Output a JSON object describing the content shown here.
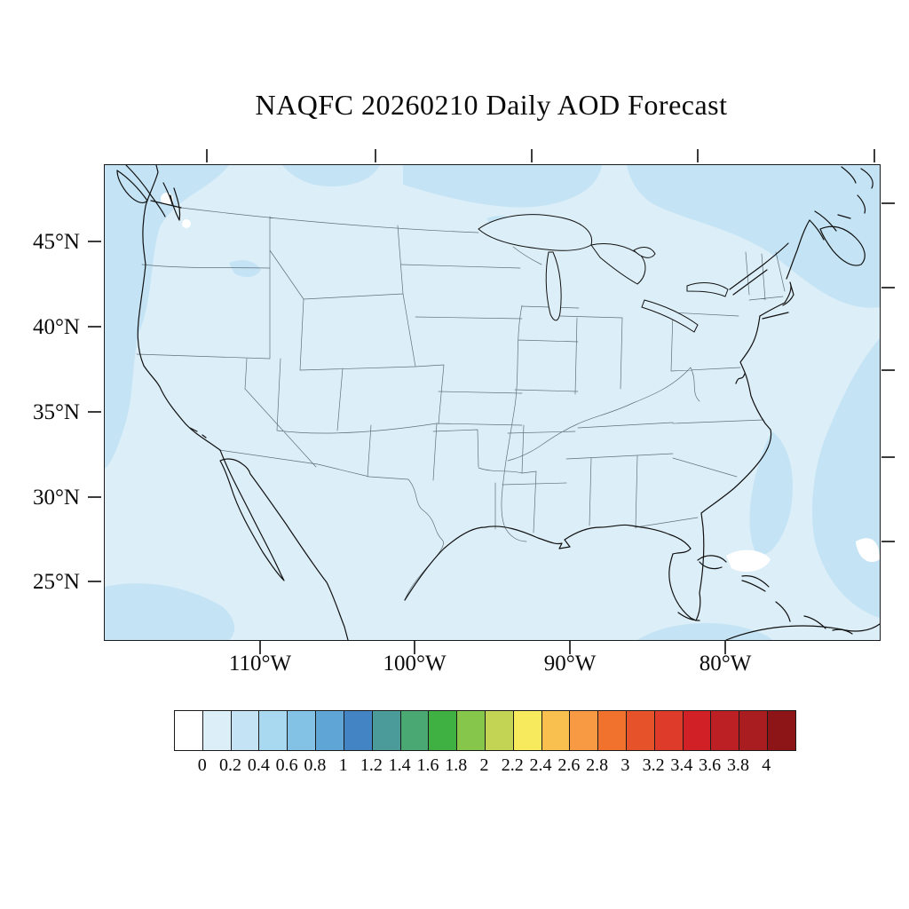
{
  "title": "NAQFC 20260210 Daily AOD Forecast",
  "map": {
    "lat_labels": [
      "45°N",
      "40°N",
      "35°N",
      "30°N",
      "25°N"
    ],
    "lon_labels": [
      "110°W",
      "100°W",
      "90°W",
      "80°W"
    ]
  },
  "colorbar": {
    "tick_labels": [
      "0",
      "0.2",
      "0.4",
      "0.6",
      "0.8",
      "1",
      "1.2",
      "1.4",
      "1.6",
      "1.8",
      "2",
      "2.2",
      "2.4",
      "2.6",
      "2.8",
      "3",
      "3.2",
      "3.4",
      "3.6",
      "3.8",
      "4"
    ],
    "colors": [
      "#FFFFFF",
      "#DCEEF8",
      "#C4E4F5",
      "#A9D9F1",
      "#84C2E5",
      "#5FA5D5",
      "#4384C4",
      "#4C9B9B",
      "#4AA873",
      "#3FB042",
      "#86C64B",
      "#C3D455",
      "#F7EB5D",
      "#F9C04F",
      "#F89A44",
      "#F0722D",
      "#E6532A",
      "#DF3B2B",
      "#D12127",
      "#BC1F24",
      "#A91D20",
      "#8E1517"
    ]
  },
  "chart_data": {
    "type": "heatmap",
    "subtype": "filled-contour-forecast-map",
    "title": "NAQFC 20260210 Daily AOD Forecast",
    "variable": "Daily AOD (aerosol optical depth)",
    "region": "Continental United States with adjacent Canada, Mexico, Pacific and Atlantic waters",
    "x_axis": {
      "tick_labels": [
        "110°W",
        "100°W",
        "90°W",
        "80°W"
      ]
    },
    "y_axis": {
      "tick_labels": [
        "45°N",
        "40°N",
        "35°N",
        "30°N",
        "25°N"
      ]
    },
    "levels": [
      0,
      0.2,
      0.4,
      0.6,
      0.8,
      1,
      1.2,
      1.4,
      1.6,
      1.8,
      2,
      2.2,
      2.4,
      2.6,
      2.8,
      3,
      3.2,
      3.4,
      3.6,
      3.8,
      4
    ],
    "palette": [
      "#FFFFFF",
      "#DCEEF8",
      "#C4E4F5",
      "#A9D9F1",
      "#84C2E5",
      "#5FA5D5",
      "#4384C4",
      "#4C9B9B",
      "#4AA873",
      "#3FB042",
      "#86C64B",
      "#C3D455",
      "#F7EB5D",
      "#F9C04F",
      "#F89A44",
      "#F0722D",
      "#E6532A",
      "#DF3B2B",
      "#D12127",
      "#BC1F24",
      "#A91D20",
      "#8E1517"
    ],
    "legend_position": "horizontal colorbar below map",
    "grid": false,
    "field_summary": [
      {
        "region": "CONUS land and most of domain",
        "aod_range": "0.0-0.2"
      },
      {
        "region": "band along northern (Canada) edge of domain",
        "aod_range": "0.2-0.4"
      },
      {
        "region": "Atlantic offshore along east edge and around Nova Scotia",
        "aod_range": "0.2-0.4"
      },
      {
        "region": "Pacific coastal strip at west edge",
        "aod_range": "0.2-0.4"
      },
      {
        "region": "southwest and south-central bottom edge patches",
        "aod_range": "0.2-0.4"
      },
      {
        "region": "small patches near Bahamas / southeast of Florida",
        "aod_range": "below 0 (white)"
      }
    ]
  }
}
